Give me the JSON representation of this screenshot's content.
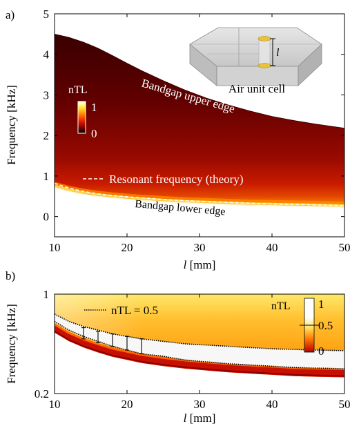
{
  "panels": [
    {
      "label": "a)",
      "x_axis": {
        "label_italic": "l",
        "label_rest": " [mm]",
        "ticks": [
          "10",
          "20",
          "30",
          "40",
          "50"
        ],
        "range": [
          10,
          50
        ]
      },
      "y_axis": {
        "label": "Frequency [kHz]",
        "ticks": [
          "0",
          "1",
          "2",
          "3",
          "4",
          "5"
        ],
        "range": [
          -0.5,
          5
        ]
      },
      "colorbar": {
        "title": "nTL",
        "ticks": [
          "1",
          "0"
        ]
      },
      "inset": {
        "caption": "Air unit cell",
        "dim_label": "l"
      },
      "annotations": {
        "upper": "Bandgap upper edge",
        "lower": "Bandgap lower edge",
        "theory": "Resonant frequency (theory)"
      }
    },
    {
      "label": "b)",
      "x_axis": {
        "label_italic": "l",
        "label_rest": " [mm]",
        "ticks": [
          "10",
          "20",
          "30",
          "40",
          "50"
        ],
        "range": [
          10,
          50
        ]
      },
      "y_axis": {
        "label": "Frequency [kHz]",
        "ticks": [
          "0.2",
          "1"
        ],
        "range": [
          0.2,
          1
        ]
      },
      "colorbar": {
        "title": "nTL",
        "ticks": [
          "1",
          "0.5",
          "0"
        ]
      },
      "annotations": {
        "contour": "nTL = 0.5"
      }
    }
  ],
  "chart_data": [
    {
      "type": "heatmap",
      "title": "",
      "xlabel": "l [mm]",
      "ylabel": "Frequency [kHz]",
      "xlim": [
        10,
        50
      ],
      "ylim": [
        -0.5,
        5
      ],
      "colorbar": {
        "label": "nTL",
        "range": [
          0,
          1
        ]
      },
      "series": [
        {
          "name": "Bandgap upper edge",
          "x": [
            10,
            12,
            14,
            16,
            18,
            20,
            22,
            25,
            28,
            31,
            34,
            37,
            40,
            43,
            46,
            50
          ],
          "y": [
            4.5,
            4.42,
            4.3,
            4.15,
            3.97,
            3.78,
            3.6,
            3.35,
            3.12,
            2.92,
            2.75,
            2.6,
            2.47,
            2.37,
            2.28,
            2.18
          ]
        },
        {
          "name": "Bandgap lower edge",
          "x": [
            10,
            12,
            14,
            16,
            18,
            20,
            22,
            25,
            28,
            31,
            34,
            37,
            40,
            43,
            46,
            50
          ],
          "y": [
            0.72,
            0.62,
            0.55,
            0.5,
            0.46,
            0.43,
            0.4,
            0.37,
            0.34,
            0.32,
            0.3,
            0.28,
            0.27,
            0.26,
            0.25,
            0.23
          ]
        },
        {
          "name": "Resonant frequency (theory)",
          "x": [
            10,
            12,
            14,
            16,
            18,
            20,
            22,
            25,
            28,
            31,
            34,
            37,
            40,
            43,
            46,
            50
          ],
          "y": [
            0.82,
            0.7,
            0.62,
            0.56,
            0.52,
            0.49,
            0.46,
            0.42,
            0.39,
            0.37,
            0.35,
            0.33,
            0.31,
            0.3,
            0.29,
            0.27
          ]
        }
      ]
    },
    {
      "type": "heatmap",
      "title": "",
      "xlabel": "l [mm]",
      "ylabel": "Frequency [kHz]",
      "xlim": [
        10,
        50
      ],
      "ylim": [
        0.2,
        1
      ],
      "colorbar": {
        "label": "nTL",
        "range": [
          0,
          1
        ]
      },
      "series": [
        {
          "name": "nTL = 0.5 (upper contour)",
          "x": [
            10,
            12,
            14,
            16,
            18,
            20,
            22,
            25,
            28,
            31,
            34,
            37,
            40,
            43,
            46,
            50
          ],
          "y": [
            0.84,
            0.78,
            0.74,
            0.71,
            0.68,
            0.66,
            0.64,
            0.62,
            0.6,
            0.59,
            0.58,
            0.57,
            0.56,
            0.555,
            0.55,
            0.545
          ]
        },
        {
          "name": "nTL = 0.5 (lower contour)",
          "x": [
            10,
            12,
            14,
            16,
            18,
            20,
            22,
            25,
            28,
            31,
            34,
            37,
            40,
            43,
            46,
            50
          ],
          "y": [
            0.78,
            0.71,
            0.66,
            0.62,
            0.58,
            0.55,
            0.52,
            0.5,
            0.47,
            0.455,
            0.44,
            0.43,
            0.42,
            0.41,
            0.405,
            0.4
          ]
        },
        {
          "name": "lower edge",
          "x": [
            10,
            12,
            14,
            16,
            18,
            20,
            22,
            25,
            28,
            31,
            34,
            37,
            40,
            43,
            46,
            50
          ],
          "y": [
            0.735,
            0.665,
            0.615,
            0.575,
            0.54,
            0.515,
            0.49,
            0.465,
            0.445,
            0.43,
            0.415,
            0.405,
            0.395,
            0.385,
            0.38,
            0.375
          ]
        }
      ],
      "error_bars": [
        {
          "x": 14,
          "low": 0.64,
          "high": 0.73
        },
        {
          "x": 16,
          "low": 0.61,
          "high": 0.7
        },
        {
          "x": 18,
          "low": 0.58,
          "high": 0.68
        },
        {
          "x": 20,
          "low": 0.55,
          "high": 0.66
        },
        {
          "x": 22,
          "low": 0.52,
          "high": 0.64
        }
      ]
    }
  ]
}
